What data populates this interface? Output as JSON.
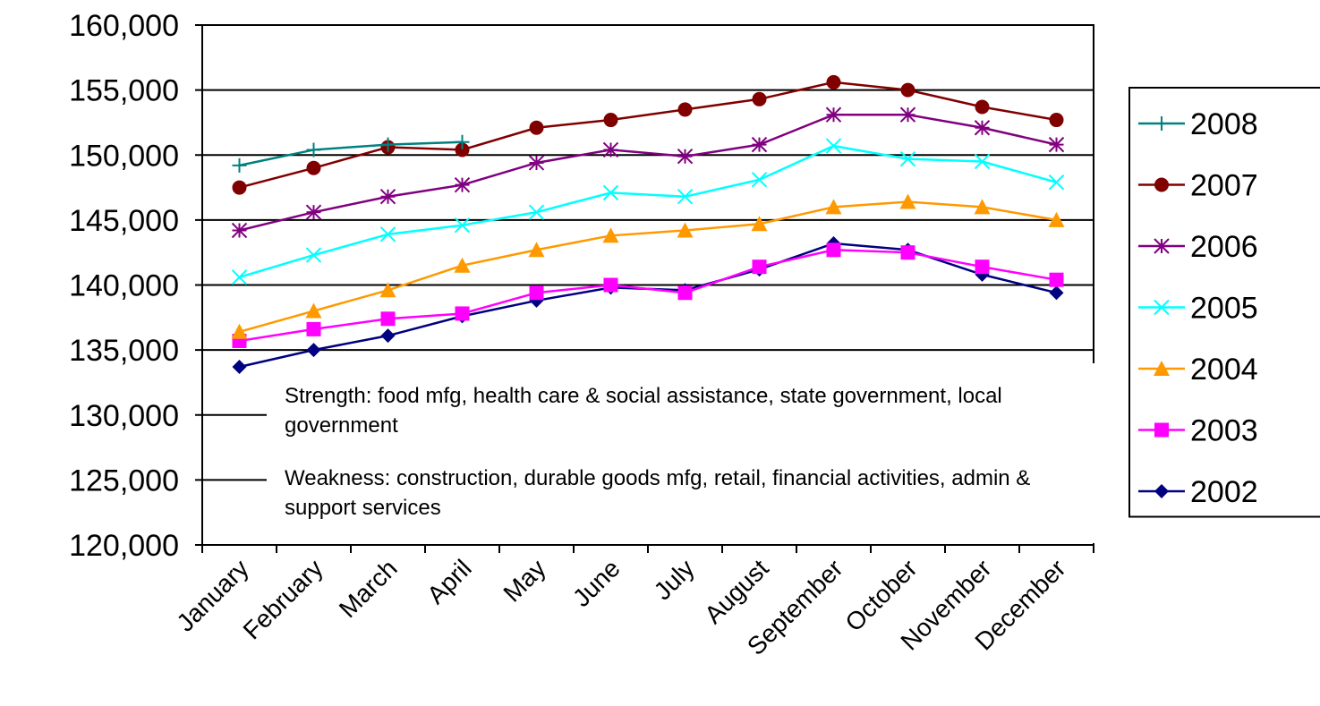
{
  "chart_data": {
    "type": "line",
    "categories": [
      "January",
      "February",
      "March",
      "April",
      "May",
      "June",
      "July",
      "August",
      "September",
      "October",
      "November",
      "December"
    ],
    "ylim": [
      120000,
      160000
    ],
    "yticks": [
      {
        "value": 120000,
        "label": "120,000"
      },
      {
        "value": 125000,
        "label": "125,000"
      },
      {
        "value": 130000,
        "label": "130,000"
      },
      {
        "value": 135000,
        "label": "135,000"
      },
      {
        "value": 140000,
        "label": "140,000"
      },
      {
        "value": 145000,
        "label": "145,000"
      },
      {
        "value": 150000,
        "label": "150,000"
      },
      {
        "value": 155000,
        "label": "155,000"
      },
      {
        "value": 160000,
        "label": "160,000"
      }
    ],
    "grid": true,
    "legend": "right",
    "annotations": [
      "Strength: food mfg, health care & social assistance, state government, local government",
      "Weakness: construction, durable goods mfg, retail, financial activities, admin & support services"
    ],
    "series": [
      {
        "name": "2008",
        "color": "#008080",
        "marker": "plus",
        "values": [
          149200,
          150400,
          150800,
          151000,
          null,
          null,
          null,
          null,
          null,
          null,
          null,
          null
        ]
      },
      {
        "name": "2007",
        "color": "#800000",
        "marker": "circle",
        "values": [
          147500,
          149000,
          150600,
          150400,
          152100,
          152700,
          153500,
          154300,
          155600,
          155000,
          153700,
          152700
        ]
      },
      {
        "name": "2006",
        "color": "#800080",
        "marker": "star",
        "values": [
          144200,
          145600,
          146800,
          147700,
          149400,
          150400,
          149900,
          150800,
          153100,
          153100,
          152100,
          150800
        ]
      },
      {
        "name": "2005",
        "color": "#00ffff",
        "marker": "cross",
        "values": [
          140600,
          142300,
          143900,
          144600,
          145600,
          147100,
          146800,
          148100,
          150700,
          149700,
          149500,
          147900
        ]
      },
      {
        "name": "2004",
        "color": "#ff9900",
        "marker": "triangle",
        "values": [
          136400,
          138000,
          139600,
          141500,
          142700,
          143800,
          144200,
          144700,
          146000,
          146400,
          146000,
          145000
        ]
      },
      {
        "name": "2003",
        "color": "#ff00ff",
        "marker": "square",
        "values": [
          135700,
          136600,
          137400,
          137800,
          139400,
          140000,
          139400,
          141400,
          142700,
          142500,
          141400,
          140400
        ]
      },
      {
        "name": "2002",
        "color": "#000080",
        "marker": "diamond",
        "values": [
          133700,
          135000,
          136100,
          137600,
          138800,
          139800,
          139600,
          141200,
          143200,
          142700,
          140800,
          139400
        ]
      }
    ]
  }
}
